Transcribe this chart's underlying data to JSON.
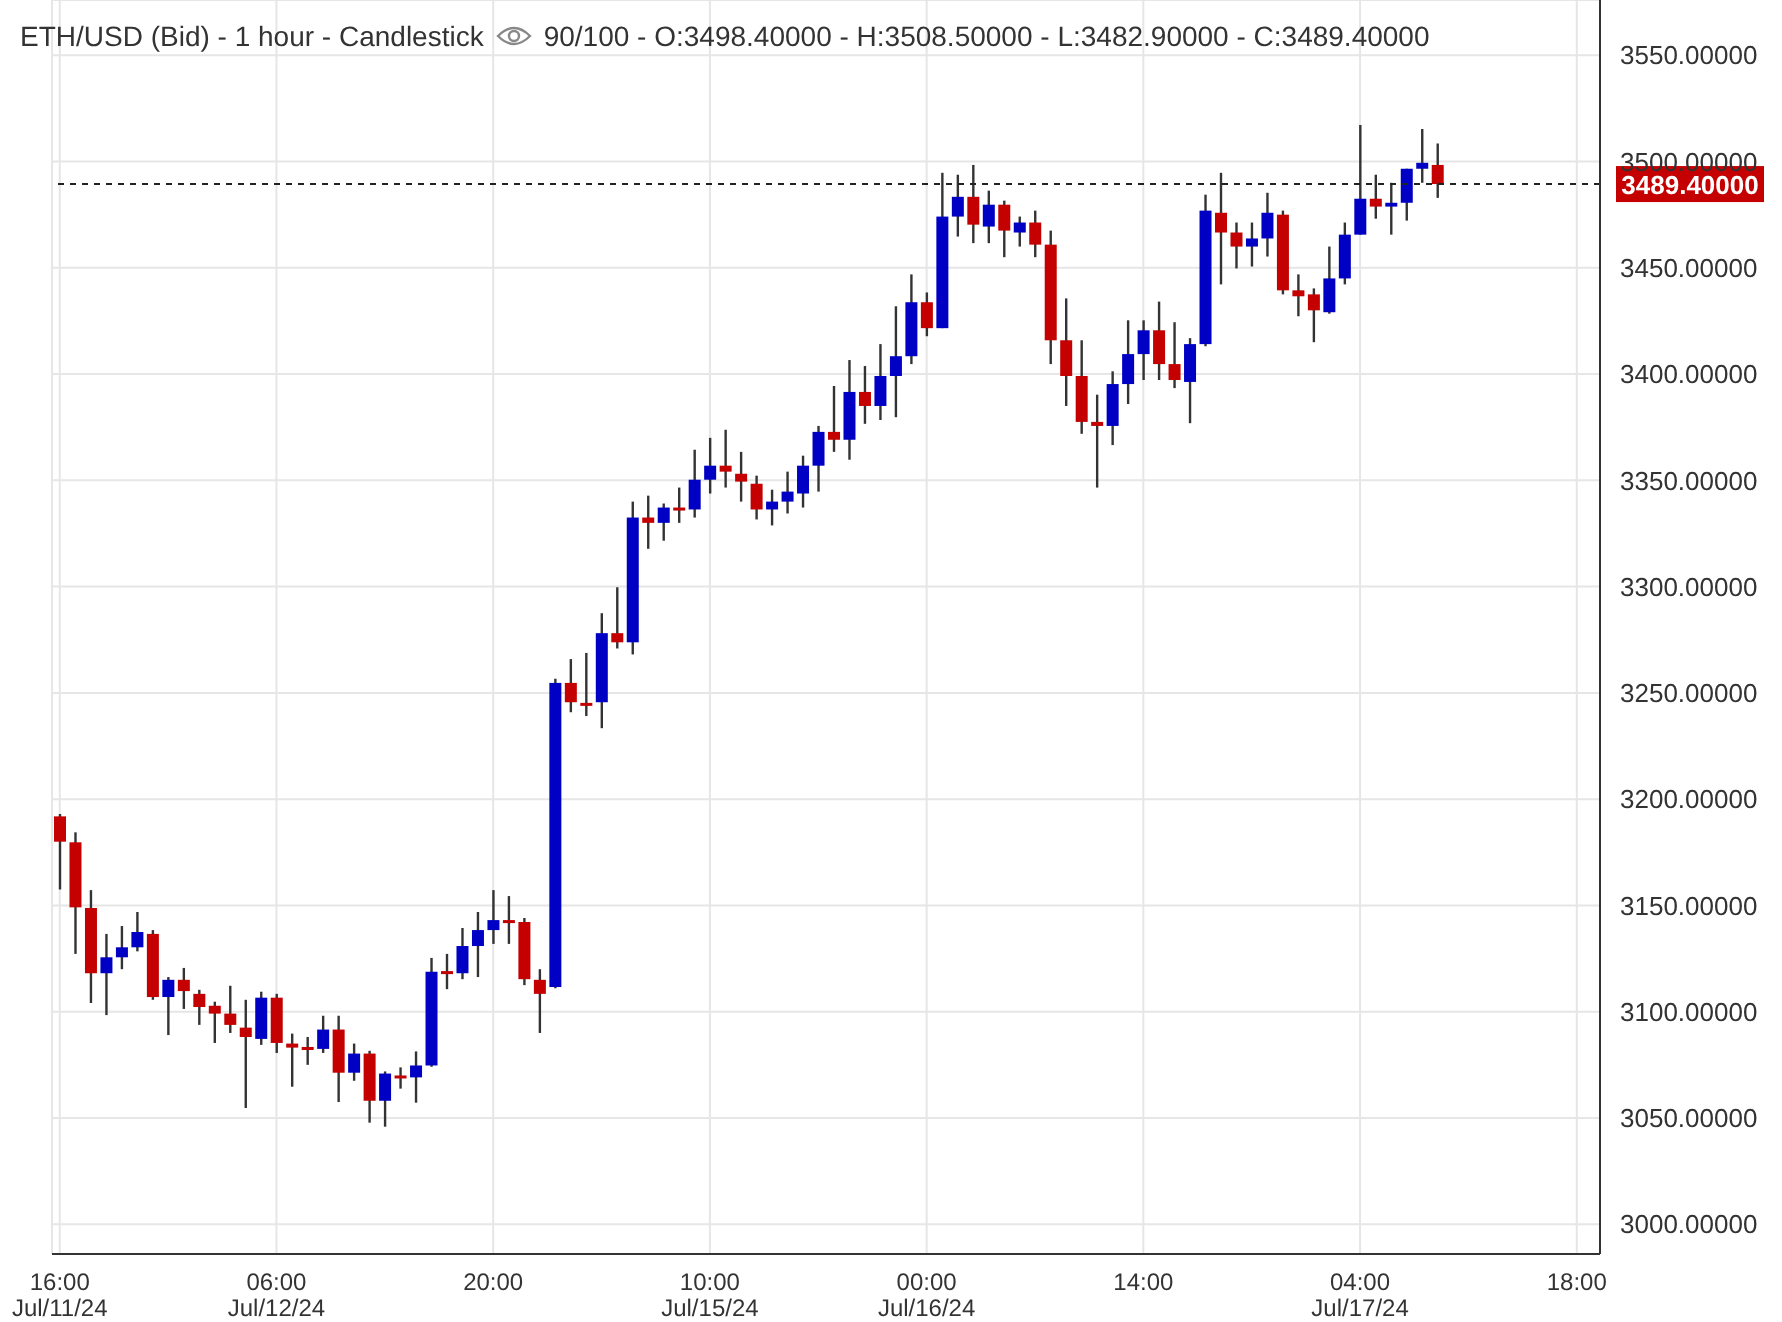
{
  "chart_data": {
    "type": "candlestick",
    "title": "ETH/USD (Bid) - 1 hour - Candlestick",
    "subtitle": "90/100 - O:3498.40000 - H:3508.50000 - L:3482.90000 - C:3489.40000",
    "categories": [
      "16:00\nJul/11/24",
      null,
      null,
      null,
      null,
      null,
      null,
      null,
      null,
      null,
      null,
      null,
      null,
      null,
      "06:00\nJul/12/24",
      null,
      null,
      null,
      null,
      null,
      null,
      null,
      null,
      null,
      null,
      null,
      null,
      null,
      "20:00",
      null,
      null,
      null,
      null,
      null,
      null,
      null,
      null,
      null,
      null,
      null,
      null,
      null,
      "10:00\nJul/15/24",
      null,
      null,
      null,
      null,
      null,
      null,
      null,
      null,
      null,
      null,
      null,
      null,
      null,
      "00:00\nJul/16/24",
      null,
      null,
      null,
      null,
      null,
      null,
      null,
      null,
      null,
      null,
      null,
      null,
      null,
      "14:00",
      null,
      null,
      null,
      null,
      null,
      null,
      null,
      null,
      null,
      null,
      null,
      null,
      null,
      "04:00\nJul/17/24",
      null,
      null,
      null,
      null,
      null,
      null,
      null,
      null,
      null,
      null,
      null,
      null,
      null,
      "18:00",
      null
    ],
    "ohlc": [
      [
        3191.9,
        3193,
        3157.5,
        3180
      ],
      [
        3179.7,
        3184.4,
        3127.2,
        3149.1
      ],
      [
        3148.8,
        3157.2,
        3104.1,
        3118.1
      ],
      [
        3118.1,
        3136.6,
        3098.4,
        3125.6
      ],
      [
        3125.6,
        3140.3,
        3120,
        3130.3
      ],
      [
        3130.3,
        3146.9,
        3128.4,
        3137.5
      ],
      [
        3136.6,
        3138.4,
        3105.6,
        3106.9
      ],
      [
        3106.9,
        3116.3,
        3089,
        3115
      ],
      [
        3115,
        3120.6,
        3101.3,
        3109.7
      ],
      [
        3108.4,
        3110.3,
        3093.8,
        3102.2
      ],
      [
        3102.8,
        3104.7,
        3085.3,
        3099.1
      ],
      [
        3099.1,
        3112.2,
        3090,
        3093.8
      ],
      [
        3092.5,
        3105.6,
        3054.7,
        3088.1
      ],
      [
        3087.2,
        3109.4,
        3084.4,
        3106.6
      ],
      [
        3106.6,
        3108.4,
        3080.6,
        3085.3
      ],
      [
        3085,
        3089.7,
        3064.7,
        3083.1
      ],
      [
        3083.4,
        3088.1,
        3075,
        3082.5
      ],
      [
        3082.5,
        3098.1,
        3080.6,
        3091.6
      ],
      [
        3091.6,
        3098.1,
        3057.5,
        3071.3
      ],
      [
        3071.3,
        3085,
        3067.5,
        3080.3
      ],
      [
        3080.3,
        3081.6,
        3047.8,
        3058.1
      ],
      [
        3058.1,
        3071.9,
        3045.9,
        3070.9
      ],
      [
        3070,
        3073.8,
        3063.8,
        3069.1
      ],
      [
        3069.1,
        3081.3,
        3057.2,
        3074.7
      ],
      [
        3074.7,
        3125.3,
        3074.1,
        3118.8
      ],
      [
        3119.1,
        3127.2,
        3110.6,
        3118.1
      ],
      [
        3118.1,
        3139.4,
        3115.3,
        3130.9
      ],
      [
        3130.9,
        3146.9,
        3116.3,
        3138.4
      ],
      [
        3138.4,
        3157.2,
        3131.9,
        3143.1
      ],
      [
        3143.1,
        3154.4,
        3131.9,
        3142.2
      ],
      [
        3142.2,
        3144.1,
        3112.5,
        3115.3
      ],
      [
        3115,
        3120,
        3090,
        3108.4
      ],
      [
        3111.6,
        3256.6,
        3111,
        3254.7
      ],
      [
        3254.7,
        3265.9,
        3240.9,
        3245.6
      ],
      [
        3245.3,
        3268.8,
        3239.1,
        3244.4
      ],
      [
        3245.6,
        3287.5,
        3233.4,
        3278.1
      ],
      [
        3278.1,
        3299.7,
        3270.9,
        3273.8
      ],
      [
        3273.8,
        3340,
        3268.1,
        3332.5
      ],
      [
        3332.5,
        3342.8,
        3317.8,
        3330
      ],
      [
        3330,
        3339.1,
        3321.6,
        3337.2
      ],
      [
        3337.2,
        3346.6,
        3330,
        3336.3
      ],
      [
        3336.3,
        3364.4,
        3332.5,
        3350.3
      ],
      [
        3350.3,
        3370,
        3343.8,
        3356.9
      ],
      [
        3356.9,
        3373.8,
        3346.6,
        3354.1
      ],
      [
        3353.1,
        3363.4,
        3340,
        3349.4
      ],
      [
        3348.4,
        3352.2,
        3331.6,
        3336.3
      ],
      [
        3336.3,
        3345.6,
        3328.8,
        3340
      ],
      [
        3340,
        3354.1,
        3334.4,
        3344.7
      ],
      [
        3343.8,
        3361.6,
        3337.2,
        3356.9
      ],
      [
        3356.9,
        3375.6,
        3344.7,
        3372.8
      ],
      [
        3372.8,
        3394.4,
        3363.4,
        3369.1
      ],
      [
        3369.1,
        3406.6,
        3359.7,
        3391.6
      ],
      [
        3391.6,
        3403.8,
        3376.6,
        3385
      ],
      [
        3385,
        3414.1,
        3378.4,
        3399.1
      ],
      [
        3399.1,
        3431.9,
        3379.7,
        3408.4
      ],
      [
        3408.4,
        3446.9,
        3404.7,
        3433.8
      ],
      [
        3433.8,
        3438.4,
        3417.8,
        3421.6
      ],
      [
        3421.6,
        3494.7,
        3421.6,
        3474.1
      ],
      [
        3474.1,
        3493.8,
        3464.7,
        3483.4
      ],
      [
        3483.4,
        3498.4,
        3461.6,
        3470.3
      ],
      [
        3469.4,
        3486.3,
        3461.6,
        3479.7
      ],
      [
        3479.7,
        3481.6,
        3455,
        3467.5
      ],
      [
        3466.6,
        3474.1,
        3460,
        3471.3
      ],
      [
        3471.3,
        3476.9,
        3455,
        3460.9
      ],
      [
        3460.9,
        3467.5,
        3404.7,
        3415.9
      ],
      [
        3415.9,
        3435.6,
        3385,
        3399.1
      ],
      [
        3399.1,
        3415.9,
        3371.9,
        3377.5
      ],
      [
        3377.5,
        3390.3,
        3346.6,
        3375.6
      ],
      [
        3375.6,
        3401.3,
        3366.6,
        3395.3
      ],
      [
        3395.3,
        3425.3,
        3385.9,
        3409.4
      ],
      [
        3409.4,
        3425.3,
        3397.2,
        3420.6
      ],
      [
        3420.6,
        3434.1,
        3397.2,
        3404.7
      ],
      [
        3404.7,
        3424.4,
        3393.4,
        3397.2
      ],
      [
        3396.3,
        3416.9,
        3376.9,
        3414.1
      ],
      [
        3414.1,
        3484.4,
        3413.1,
        3476.9
      ],
      [
        3475.9,
        3494.7,
        3442.2,
        3466.6
      ],
      [
        3466.6,
        3471.3,
        3449.7,
        3460
      ],
      [
        3460,
        3471.3,
        3450.6,
        3463.8
      ],
      [
        3463.8,
        3485.3,
        3455.3,
        3475.9
      ],
      [
        3475,
        3476.9,
        3437.5,
        3439.4
      ],
      [
        3439.4,
        3446.9,
        3427.2,
        3436.6
      ],
      [
        3437.5,
        3440.3,
        3415,
        3430
      ],
      [
        3429.1,
        3460,
        3428.4,
        3445
      ],
      [
        3445,
        3471.3,
        3442.2,
        3465.6
      ],
      [
        3465.6,
        3517.2,
        3465.6,
        3482.5
      ],
      [
        3482.5,
        3493.8,
        3473.1,
        3478.8
      ],
      [
        3478.8,
        3490,
        3465.6,
        3480.6
      ],
      [
        3480.6,
        3496.6,
        3472.2,
        3496.6
      ],
      [
        3496.6,
        3515.3,
        3490,
        3499.4
      ],
      [
        3498.4,
        3508.5,
        3482.9,
        3489.4
      ],
      null,
      null,
      null,
      null,
      null,
      null,
      null,
      null,
      null,
      null
    ],
    "colors": [
      "#c40000",
      "#c40000",
      "#c40000",
      "#0000c4",
      "#0000c4",
      "#0000c4",
      "#c40000",
      "#0000c4",
      "#c40000",
      "#c40000",
      "#c40000",
      "#c40000",
      "#c40000",
      "#0000c4",
      "#c40000",
      "#c40000",
      "#c40000",
      "#0000c4",
      "#c40000",
      "#0000c4",
      "#c40000",
      "#0000c4",
      "#c40000",
      "#0000c4",
      "#0000c4",
      "#c40000",
      "#0000c4",
      "#0000c4",
      "#0000c4",
      "#c40000",
      "#c40000",
      "#c40000",
      "#0000c4",
      "#c40000",
      "#c40000",
      "#0000c4",
      "#c40000",
      "#0000c4",
      "#c40000",
      "#0000c4",
      "#c40000",
      "#0000c4",
      "#0000c4",
      "#c40000",
      "#c40000",
      "#c40000",
      "#0000c4",
      "#0000c4",
      "#0000c4",
      "#0000c4",
      "#c40000",
      "#0000c4",
      "#c40000",
      "#0000c4",
      "#0000c4",
      "#0000c4",
      "#c40000",
      "#0000c4",
      "#0000c4",
      "#c40000",
      "#0000c4",
      "#c40000",
      "#0000c4",
      "#c40000",
      "#c40000",
      "#c40000",
      "#c40000",
      "#c40000",
      "#0000c4",
      "#0000c4",
      "#0000c4",
      "#c40000",
      "#c40000",
      "#0000c4",
      "#0000c4",
      "#c40000",
      "#c40000",
      "#0000c4",
      "#0000c4",
      "#c40000",
      "#c40000",
      "#c40000",
      "#0000c4",
      "#0000c4",
      "#0000c4",
      "#c40000",
      "#0000c4",
      "#0000c4",
      "#0000c4",
      "#c40000",
      null,
      null,
      null,
      null,
      null,
      null,
      null,
      null,
      null,
      null
    ],
    "ylim": [
      2986,
      3576
    ],
    "yticks": [
      {
        "value": 3000,
        "label": "3000.00000"
      },
      {
        "value": 3050,
        "label": "3050.00000"
      },
      {
        "value": 3100,
        "label": "3100.00000"
      },
      {
        "value": 3150,
        "label": "3150.00000"
      },
      {
        "value": 3200,
        "label": "3200.00000"
      },
      {
        "value": 3250,
        "label": "3250.00000"
      },
      {
        "value": 3300,
        "label": "3300.00000"
      },
      {
        "value": 3350,
        "label": "3350.00000"
      },
      {
        "value": 3400,
        "label": "3400.00000"
      },
      {
        "value": 3450,
        "label": "3450.00000"
      },
      {
        "value": 3500,
        "label": "3500.00000"
      },
      {
        "value": 3550,
        "label": "3550.00000"
      }
    ],
    "ref_lines": [
      {
        "axis": "y",
        "value": 3489.4,
        "label": "3489.40000",
        "color": "#222222",
        "line_style": "dashed"
      }
    ],
    "grid": true
  }
}
